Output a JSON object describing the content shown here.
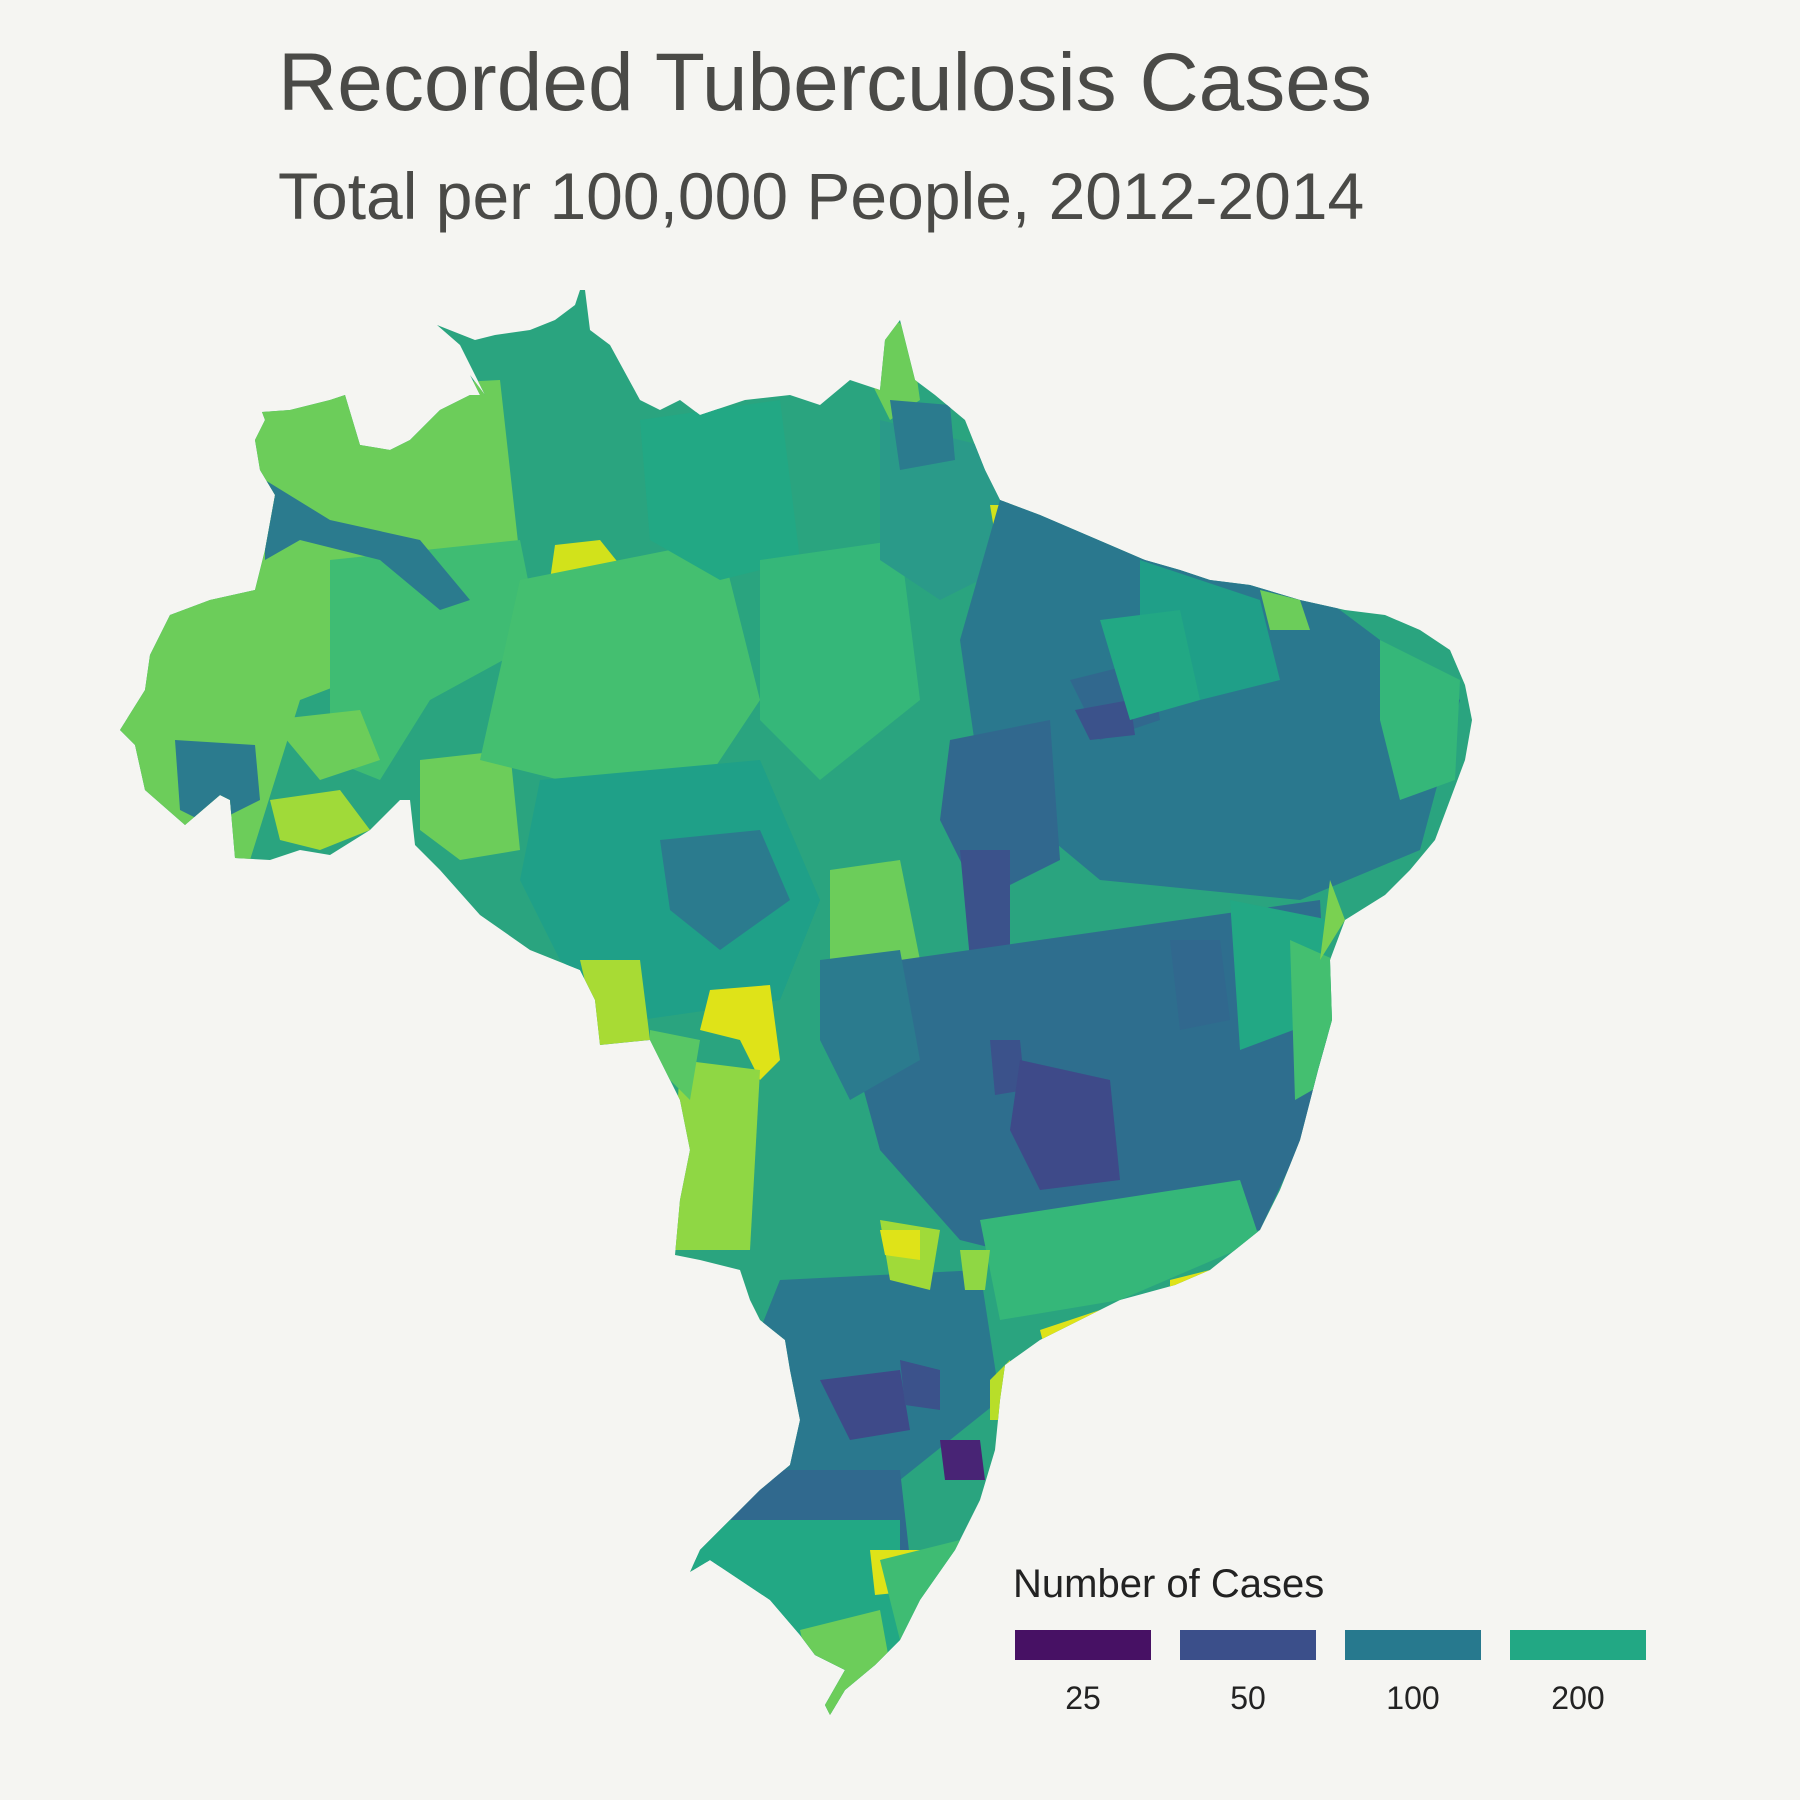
{
  "header": {
    "title": "Recorded Tuberculosis Cases",
    "subtitle": "Total per 100,000 People, 2012-2014"
  },
  "map": {
    "region": "Brazil",
    "palette": "viridis",
    "background_color": "#f5f5f2",
    "title_color": "#4a4a47"
  },
  "legend": {
    "title": "Number of Cases",
    "items": [
      {
        "label": "25",
        "color": "#471164"
      },
      {
        "label": "50",
        "color": "#3b4f8a"
      },
      {
        "label": "100",
        "color": "#27798e"
      },
      {
        "label": "200",
        "color": "#22a884"
      }
    ]
  }
}
